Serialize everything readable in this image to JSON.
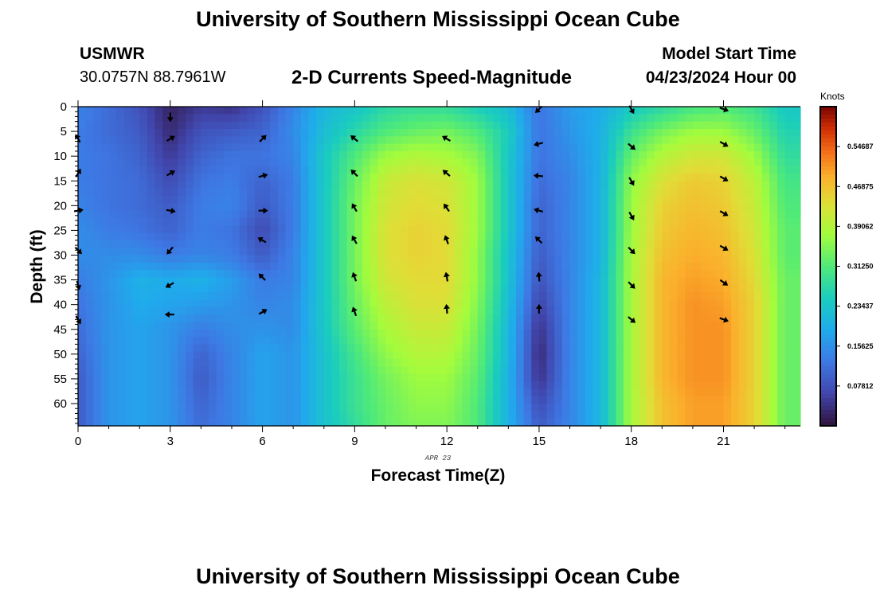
{
  "page": {
    "title": "University of Southern Mississippi Ocean Cube",
    "bottom_title": "University of Southern Mississippi Ocean Cube",
    "station": "USMWR",
    "coords": "30.0757N  88.7961W",
    "subtitle": "2-D Currents Speed-Magnitude",
    "model_label": "Model Start Time",
    "model_time": "04/23/2024 Hour 00",
    "date_label": "APR 23"
  },
  "chart_data": {
    "type": "heatmap",
    "title": "2-D Currents Speed-Magnitude",
    "xlabel": "Forecast Time(Z)",
    "ylabel": "Depth (ft)",
    "xlim": [
      0,
      23.5
    ],
    "ylim": [
      0,
      64.5
    ],
    "x_ticks": [
      0,
      3,
      6,
      9,
      12,
      15,
      18,
      21
    ],
    "y_ticks": [
      0,
      5,
      10,
      15,
      20,
      25,
      30,
      35,
      40,
      45,
      50,
      55,
      60
    ],
    "hours": [
      0,
      1,
      2,
      3,
      4,
      5,
      6,
      7,
      8,
      9,
      10,
      11,
      12,
      13,
      14,
      15,
      16,
      17,
      18,
      19,
      20,
      21,
      22,
      23
    ],
    "depth_rows": [
      0,
      5,
      10,
      15,
      20,
      25,
      30,
      35,
      40,
      45,
      50,
      55,
      60,
      64
    ],
    "speed_knots": [
      [
        0.14,
        0.11,
        0.08,
        0.02,
        0.05,
        0.04,
        0.08,
        0.14,
        0.21,
        0.23,
        0.27,
        0.28,
        0.28,
        0.25,
        0.22,
        0.12,
        0.17,
        0.19,
        0.24,
        0.27,
        0.3,
        0.31,
        0.29,
        0.24
      ],
      [
        0.13,
        0.11,
        0.09,
        0.03,
        0.08,
        0.09,
        0.1,
        0.15,
        0.22,
        0.27,
        0.31,
        0.33,
        0.34,
        0.31,
        0.25,
        0.12,
        0.16,
        0.2,
        0.29,
        0.34,
        0.37,
        0.37,
        0.33,
        0.26
      ],
      [
        0.13,
        0.12,
        0.1,
        0.05,
        0.1,
        0.12,
        0.12,
        0.14,
        0.24,
        0.31,
        0.37,
        0.39,
        0.38,
        0.35,
        0.24,
        0.12,
        0.15,
        0.2,
        0.33,
        0.39,
        0.42,
        0.42,
        0.37,
        0.28
      ],
      [
        0.13,
        0.12,
        0.11,
        0.07,
        0.12,
        0.13,
        0.1,
        0.13,
        0.24,
        0.33,
        0.41,
        0.43,
        0.42,
        0.37,
        0.24,
        0.11,
        0.14,
        0.2,
        0.36,
        0.43,
        0.46,
        0.45,
        0.4,
        0.3
      ],
      [
        0.14,
        0.12,
        0.11,
        0.09,
        0.13,
        0.14,
        0.09,
        0.13,
        0.24,
        0.34,
        0.42,
        0.44,
        0.43,
        0.37,
        0.24,
        0.1,
        0.14,
        0.2,
        0.37,
        0.45,
        0.47,
        0.46,
        0.41,
        0.31
      ],
      [
        0.15,
        0.13,
        0.12,
        0.1,
        0.13,
        0.12,
        0.07,
        0.13,
        0.24,
        0.34,
        0.43,
        0.45,
        0.44,
        0.37,
        0.24,
        0.1,
        0.14,
        0.2,
        0.37,
        0.46,
        0.48,
        0.47,
        0.42,
        0.32
      ],
      [
        0.15,
        0.15,
        0.15,
        0.13,
        0.14,
        0.13,
        0.09,
        0.14,
        0.24,
        0.34,
        0.43,
        0.45,
        0.44,
        0.36,
        0.23,
        0.09,
        0.14,
        0.2,
        0.38,
        0.47,
        0.49,
        0.48,
        0.43,
        0.32
      ],
      [
        0.13,
        0.16,
        0.2,
        0.19,
        0.2,
        0.17,
        0.13,
        0.14,
        0.24,
        0.34,
        0.42,
        0.44,
        0.44,
        0.36,
        0.23,
        0.08,
        0.14,
        0.21,
        0.38,
        0.48,
        0.5,
        0.49,
        0.44,
        0.33
      ],
      [
        0.12,
        0.16,
        0.19,
        0.18,
        0.17,
        0.16,
        0.14,
        0.15,
        0.24,
        0.33,
        0.4,
        0.43,
        0.43,
        0.35,
        0.22,
        0.06,
        0.14,
        0.21,
        0.38,
        0.48,
        0.51,
        0.5,
        0.45,
        0.33
      ],
      [
        0.11,
        0.16,
        0.18,
        0.16,
        0.13,
        0.15,
        0.16,
        0.15,
        0.24,
        0.32,
        0.38,
        0.41,
        0.41,
        0.34,
        0.21,
        0.04,
        0.14,
        0.21,
        0.38,
        0.48,
        0.51,
        0.51,
        0.45,
        0.33
      ],
      [
        0.1,
        0.16,
        0.18,
        0.16,
        0.1,
        0.14,
        0.18,
        0.16,
        0.23,
        0.3,
        0.36,
        0.39,
        0.39,
        0.33,
        0.21,
        0.03,
        0.14,
        0.21,
        0.38,
        0.48,
        0.51,
        0.51,
        0.45,
        0.33
      ],
      [
        0.09,
        0.16,
        0.18,
        0.16,
        0.09,
        0.14,
        0.18,
        0.16,
        0.23,
        0.29,
        0.34,
        0.37,
        0.37,
        0.32,
        0.2,
        0.04,
        0.14,
        0.21,
        0.38,
        0.48,
        0.51,
        0.51,
        0.45,
        0.33
      ],
      [
        0.09,
        0.16,
        0.18,
        0.16,
        0.1,
        0.14,
        0.18,
        0.16,
        0.23,
        0.29,
        0.33,
        0.36,
        0.36,
        0.31,
        0.2,
        0.07,
        0.14,
        0.21,
        0.38,
        0.47,
        0.5,
        0.5,
        0.45,
        0.33
      ],
      [
        0.09,
        0.16,
        0.18,
        0.16,
        0.11,
        0.14,
        0.18,
        0.16,
        0.23,
        0.28,
        0.33,
        0.35,
        0.35,
        0.31,
        0.2,
        0.09,
        0.14,
        0.21,
        0.38,
        0.47,
        0.5,
        0.5,
        0.45,
        0.33
      ]
    ],
    "arrows": [
      {
        "hour": 0,
        "depth": 6.5,
        "dir": 330
      },
      {
        "hour": 0,
        "depth": 13.5,
        "dir": 30
      },
      {
        "hour": 0,
        "depth": 21,
        "dir": 80
      },
      {
        "hour": 0,
        "depth": 29,
        "dir": 135
      },
      {
        "hour": 0,
        "depth": 36,
        "dir": 165
      },
      {
        "hour": 0,
        "depth": 43,
        "dir": 150
      },
      {
        "hour": 3,
        "depth": 2,
        "dir": 180
      },
      {
        "hour": 3,
        "depth": 6.5,
        "dir": 60
      },
      {
        "hour": 3,
        "depth": 13.5,
        "dir": 60
      },
      {
        "hour": 3,
        "depth": 21,
        "dir": 100
      },
      {
        "hour": 3,
        "depth": 29,
        "dir": 220
      },
      {
        "hour": 3,
        "depth": 36,
        "dir": 240
      },
      {
        "hour": 3,
        "depth": 42,
        "dir": 270
      },
      {
        "hour": 6,
        "depth": 6.5,
        "dir": 45
      },
      {
        "hour": 6,
        "depth": 14,
        "dir": 75
      },
      {
        "hour": 6,
        "depth": 21,
        "dir": 90
      },
      {
        "hour": 6,
        "depth": 27,
        "dir": 300
      },
      {
        "hour": 6,
        "depth": 34.5,
        "dir": 315
      },
      {
        "hour": 6,
        "depth": 41.5,
        "dir": 60
      },
      {
        "hour": 9,
        "depth": 6.5,
        "dir": 310
      },
      {
        "hour": 9,
        "depth": 13.5,
        "dir": 315
      },
      {
        "hour": 9,
        "depth": 20.5,
        "dir": 330
      },
      {
        "hour": 9,
        "depth": 27,
        "dir": 330
      },
      {
        "hour": 9,
        "depth": 34.5,
        "dir": 340
      },
      {
        "hour": 9,
        "depth": 41.5,
        "dir": 340
      },
      {
        "hour": 12,
        "depth": 6.5,
        "dir": 300
      },
      {
        "hour": 12,
        "depth": 13.5,
        "dir": 310
      },
      {
        "hour": 12,
        "depth": 20.5,
        "dir": 325
      },
      {
        "hour": 12,
        "depth": 27,
        "dir": 340
      },
      {
        "hour": 12,
        "depth": 34.5,
        "dir": 350
      },
      {
        "hour": 12,
        "depth": 41,
        "dir": 355
      },
      {
        "hour": 15,
        "depth": 0.5,
        "dir": 225
      },
      {
        "hour": 15,
        "depth": 7.5,
        "dir": 255
      },
      {
        "hour": 15,
        "depth": 14,
        "dir": 275
      },
      {
        "hour": 15,
        "depth": 21,
        "dir": 285
      },
      {
        "hour": 15,
        "depth": 27,
        "dir": 315
      },
      {
        "hour": 15,
        "depth": 34.5,
        "dir": 355
      },
      {
        "hour": 15,
        "depth": 41,
        "dir": 0
      },
      {
        "hour": 18,
        "depth": 0.5,
        "dir": 150
      },
      {
        "hour": 18,
        "depth": 8,
        "dir": 130
      },
      {
        "hour": 18,
        "depth": 15,
        "dir": 150
      },
      {
        "hour": 18,
        "depth": 22,
        "dir": 150
      },
      {
        "hour": 18,
        "depth": 29,
        "dir": 135
      },
      {
        "hour": 18,
        "depth": 36,
        "dir": 135
      },
      {
        "hour": 18,
        "depth": 43,
        "dir": 130
      },
      {
        "hour": 21,
        "depth": 0.5,
        "dir": 110
      },
      {
        "hour": 21,
        "depth": 7.5,
        "dir": 120
      },
      {
        "hour": 21,
        "depth": 14.5,
        "dir": 120
      },
      {
        "hour": 21,
        "depth": 21.5,
        "dir": 120
      },
      {
        "hour": 21,
        "depth": 28.5,
        "dir": 120
      },
      {
        "hour": 21,
        "depth": 35.5,
        "dir": 125
      },
      {
        "hour": 21,
        "depth": 43,
        "dir": 110
      }
    ],
    "colorbar": {
      "label": "Knots",
      "min": 0,
      "max": 0.625,
      "tick_values": [
        0.07812,
        0.15625,
        0.23437,
        0.3125,
        0.39062,
        0.46875,
        0.54687
      ],
      "tick_labels": [
        "0.07812",
        "0.15625",
        "0.23437",
        "0.31250",
        "0.39062",
        "0.46875",
        "0.54687"
      ]
    }
  }
}
